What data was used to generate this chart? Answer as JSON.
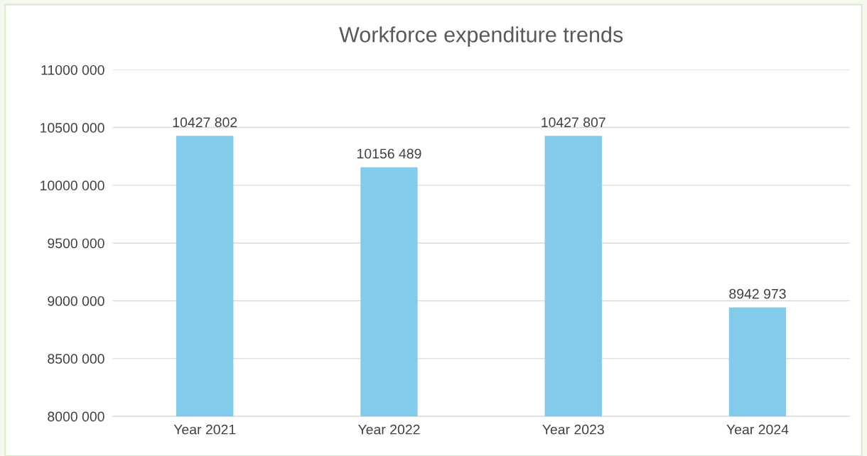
{
  "chart_data": {
    "type": "bar",
    "title": "Workforce expenditure trends",
    "categories": [
      "Year 2021",
      "Year 2022",
      "Year 2023",
      "Year 2024"
    ],
    "values": [
      10427802,
      10156489,
      10427807,
      8942973
    ],
    "value_labels": [
      "10427 802",
      "10156 489",
      "10427 807",
      "8942 973"
    ],
    "color": "#83cbeb",
    "ylim": [
      8000000,
      11000000
    ],
    "yticks": [
      {
        "value": 8000000,
        "label": "8000 000"
      },
      {
        "value": 8500000,
        "label": "8500 000"
      },
      {
        "value": 9000000,
        "label": "9000 000"
      },
      {
        "value": 9500000,
        "label": "9500 000"
      },
      {
        "value": 10000000,
        "label": "10000 000"
      },
      {
        "value": 10500000,
        "label": "10500 000"
      },
      {
        "value": 11000000,
        "label": "11000 000"
      }
    ],
    "grid": "y",
    "legend": false
  }
}
